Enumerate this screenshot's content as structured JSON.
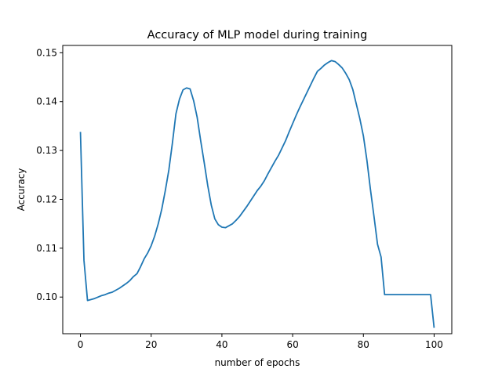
{
  "chart_data": {
    "type": "line",
    "title": "Accuracy of MLP model during training",
    "xlabel": "number of epochs",
    "ylabel": "Accuracy",
    "xlim": [
      -5,
      105
    ],
    "ylim": [
      0.0925,
      0.1515
    ],
    "xticks": [
      0,
      20,
      40,
      60,
      80,
      100
    ],
    "yticks": [
      0.1,
      0.11,
      0.12,
      0.13,
      0.14,
      0.15
    ],
    "xtick_labels": [
      "0",
      "20",
      "40",
      "60",
      "80",
      "100"
    ],
    "ytick_labels": [
      "0.10",
      "0.11",
      "0.12",
      "0.13",
      "0.14",
      "0.15"
    ],
    "grid": false,
    "line_color": "#1f77b4",
    "series": [
      {
        "x": [
          0,
          1,
          2,
          3,
          4,
          5,
          6,
          7,
          8,
          9,
          10,
          11,
          12,
          13,
          14,
          15,
          16,
          17,
          18,
          19,
          20,
          21,
          22,
          23,
          24,
          25,
          26,
          27,
          28,
          29,
          30,
          31,
          32,
          33,
          34,
          35,
          36,
          37,
          38,
          39,
          40,
          41,
          42,
          43,
          44,
          45,
          46,
          47,
          48,
          49,
          50,
          51,
          52,
          53,
          54,
          55,
          56,
          57,
          58,
          59,
          60,
          61,
          62,
          63,
          64,
          65,
          66,
          67,
          68,
          69,
          70,
          71,
          72,
          73,
          74,
          75,
          76,
          77,
          78,
          79,
          80,
          81,
          82,
          83,
          84,
          85,
          86,
          87,
          88,
          89,
          90,
          91,
          92,
          93,
          94,
          95,
          96,
          97,
          98,
          99,
          100
        ],
        "values": [
          0.1338,
          0.1075,
          0.0993,
          0.0995,
          0.0997,
          0.1,
          0.1003,
          0.1005,
          0.1008,
          0.101,
          0.1014,
          0.1018,
          0.1023,
          0.1028,
          0.1034,
          0.1042,
          0.1048,
          0.1062,
          0.1078,
          0.109,
          0.1105,
          0.1125,
          0.115,
          0.118,
          0.1218,
          0.126,
          0.1315,
          0.1375,
          0.1405,
          0.1424,
          0.1428,
          0.1426,
          0.1402,
          0.1368,
          0.132,
          0.1275,
          0.1228,
          0.1188,
          0.116,
          0.1148,
          0.1143,
          0.1142,
          0.1146,
          0.115,
          0.1157,
          0.1165,
          0.1175,
          0.1185,
          0.1196,
          0.1207,
          0.1218,
          0.1227,
          0.1238,
          0.1252,
          0.1265,
          0.1278,
          0.129,
          0.1305,
          0.132,
          0.1338,
          0.1355,
          0.1372,
          0.1388,
          0.1403,
          0.1418,
          0.1433,
          0.1448,
          0.1462,
          0.1468,
          0.1475,
          0.148,
          0.1484,
          0.1482,
          0.1476,
          0.1469,
          0.1458,
          0.1445,
          0.1425,
          0.1395,
          0.1365,
          0.133,
          0.128,
          0.122,
          0.1165,
          0.1108,
          0.1082,
          0.1005,
          0.1005,
          0.1005,
          0.1005,
          0.1005,
          0.1005,
          0.1005,
          0.1005,
          0.1005,
          0.1005,
          0.1005,
          0.1005,
          0.1005,
          0.1005,
          0.0937
        ]
      }
    ]
  }
}
